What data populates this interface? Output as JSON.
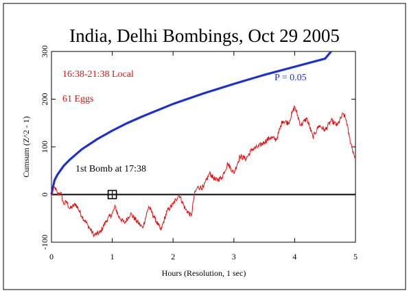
{
  "chart_data": {
    "type": "line",
    "title": "India, Delhi Bombings, Oct 29 2005",
    "xlabel": "Hours (Resolution, 1 sec)",
    "ylabel": "Cumsum (Z^2 - 1)",
    "xlim": [
      0,
      5
    ],
    "ylim": [
      -100,
      300
    ],
    "xticks": [
      "0",
      "1",
      "2",
      "3",
      "4",
      "5"
    ],
    "yticks": [
      "-100",
      "0",
      "100",
      "200",
      "300"
    ],
    "grid": false,
    "annotations": {
      "time_window": "16:38-21:38 Local",
      "eggs": "61 Eggs",
      "event": "1st Bomb at 17:38",
      "event_x": 1.0,
      "event_y": 0,
      "p_label": "P = 0.05"
    },
    "series": [
      {
        "name": "P = 0.05",
        "color": "#1a2fd8",
        "kind": "envelope",
        "x": [
          0,
          0.05,
          0.1,
          0.2,
          0.3,
          0.5,
          0.75,
          1.0,
          1.25,
          1.5,
          2.0,
          2.5,
          3.0,
          3.5,
          4.0,
          4.5,
          4.6
        ],
        "y": [
          0,
          30,
          42,
          60,
          73,
          95,
          116,
          134,
          150,
          164,
          190,
          212,
          232,
          251,
          268,
          285,
          300
        ]
      },
      {
        "name": "Cumsum",
        "color": "#e01010",
        "kind": "random-walk",
        "x": [
          0,
          0.03,
          0.06,
          0.1,
          0.15,
          0.2,
          0.25,
          0.3,
          0.4,
          0.5,
          0.6,
          0.7,
          0.8,
          0.9,
          1.0,
          1.05,
          1.1,
          1.2,
          1.3,
          1.4,
          1.5,
          1.6,
          1.7,
          1.8,
          1.9,
          2.0,
          2.1,
          2.2,
          2.3,
          2.35,
          2.4,
          2.5,
          2.6,
          2.7,
          2.8,
          2.9,
          3.0,
          3.1,
          3.2,
          3.3,
          3.4,
          3.5,
          3.6,
          3.7,
          3.8,
          3.9,
          4.0,
          4.1,
          4.2,
          4.3,
          4.4,
          4.5,
          4.6,
          4.7,
          4.8,
          4.85,
          4.9,
          4.95,
          5.0
        ],
        "y": [
          -5,
          10,
          15,
          0,
          5,
          -20,
          -15,
          -30,
          -20,
          -45,
          -65,
          -85,
          -80,
          -55,
          -40,
          -25,
          -45,
          -60,
          -40,
          -55,
          -70,
          -25,
          -50,
          -75,
          -35,
          -20,
          0,
          -30,
          -45,
          0,
          15,
          15,
          45,
          30,
          35,
          65,
          45,
          80,
          75,
          95,
          100,
          110,
          120,
          115,
          155,
          150,
          185,
          145,
          160,
          120,
          145,
          135,
          155,
          145,
          170,
          155,
          120,
          95,
          75
        ]
      }
    ]
  }
}
